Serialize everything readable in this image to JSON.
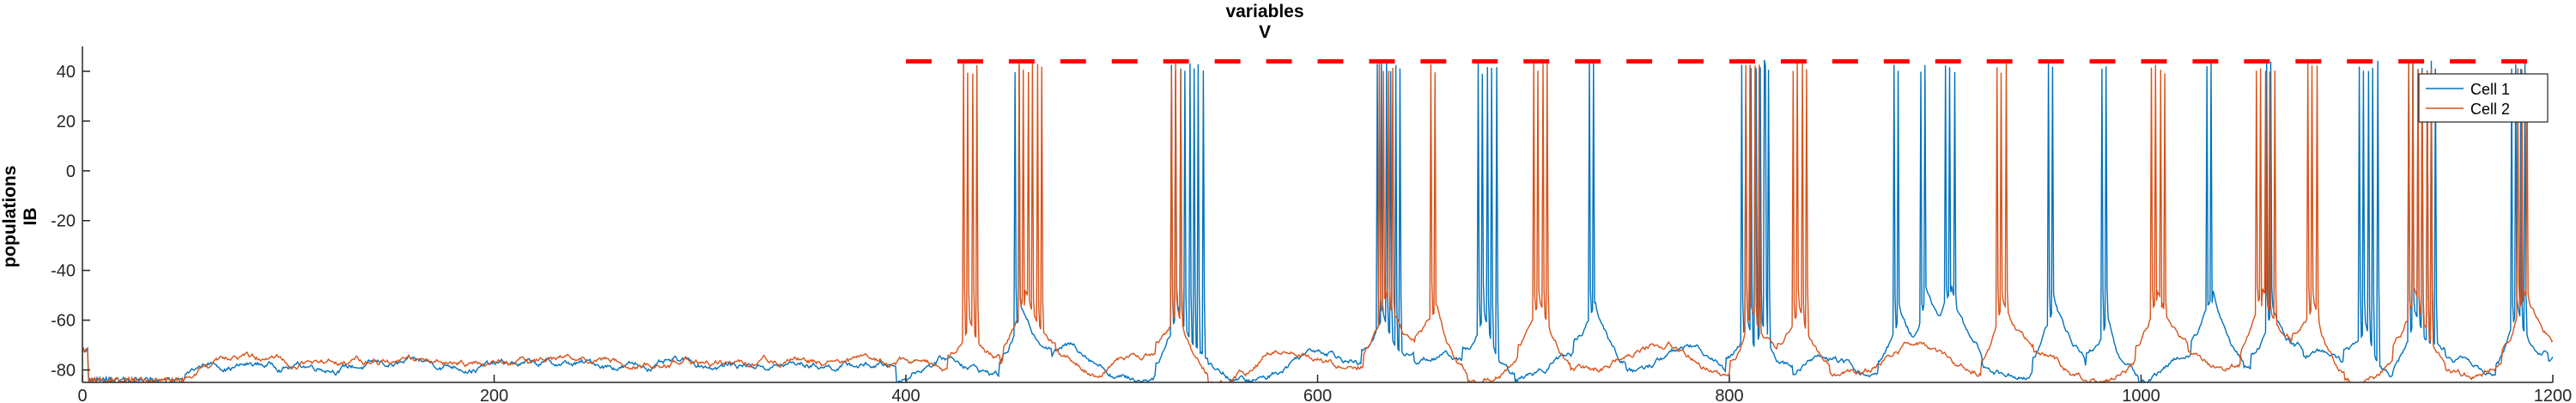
{
  "header": {
    "line1": "variables",
    "line2": "V"
  },
  "ylabel": {
    "line1": "populations",
    "line2": "IB"
  },
  "colors": {
    "cell1": "#0072BD",
    "cell2": "#D95319",
    "marker": "#FF0000",
    "axis": "#262626"
  },
  "chart_data": {
    "type": "line",
    "xlim": [
      0,
      1200
    ],
    "ylim": [
      -85,
      50
    ],
    "xticks": [
      0,
      200,
      400,
      600,
      800,
      1000,
      1200
    ],
    "yticks": [
      -80,
      -60,
      -40,
      -20,
      0,
      20,
      40
    ],
    "xtick_labels": [
      "0",
      "200",
      "400",
      "600",
      "800",
      "1000",
      "1200"
    ],
    "ytick_labels": [
      "-80",
      "-60",
      "-40",
      "-20",
      "0",
      "20",
      "40"
    ],
    "grid": false,
    "legend_position": "top-right",
    "stimulus_marker": {
      "y": 44,
      "x_start": 400,
      "x_end": 1190,
      "period": 25,
      "duty": 0.5
    },
    "series": [
      {
        "name": "Cell 1",
        "color": "#0072BD",
        "baseline": -78,
        "bursts": [
          [
            453,
            2
          ],
          [
            529,
            8
          ],
          [
            629,
            6
          ],
          [
            678,
            5
          ],
          [
            732,
            2
          ],
          [
            806,
            7
          ],
          [
            813,
            3
          ],
          [
            880,
            2
          ],
          [
            893,
            2
          ],
          [
            905,
            3
          ],
          [
            955,
            2
          ],
          [
            981,
            2
          ],
          [
            1032,
            2
          ],
          [
            1061,
            2
          ],
          [
            1106,
            5
          ],
          [
            1130,
            7
          ],
          [
            1180,
            4
          ]
        ]
      },
      {
        "name": "Cell 2",
        "color": "#D95319",
        "baseline": -77,
        "bursts": [
          [
            428,
            4
          ],
          [
            455,
            6
          ],
          [
            529,
            3
          ],
          [
            630,
            4
          ],
          [
            655,
            2
          ],
          [
            705,
            4
          ],
          [
            808,
            4
          ],
          [
            831,
            4
          ],
          [
            930,
            3
          ],
          [
            1005,
            4
          ],
          [
            1056,
            5
          ],
          [
            1081,
            3
          ],
          [
            1130,
            6
          ],
          [
            1183,
            3
          ]
        ]
      }
    ]
  }
}
